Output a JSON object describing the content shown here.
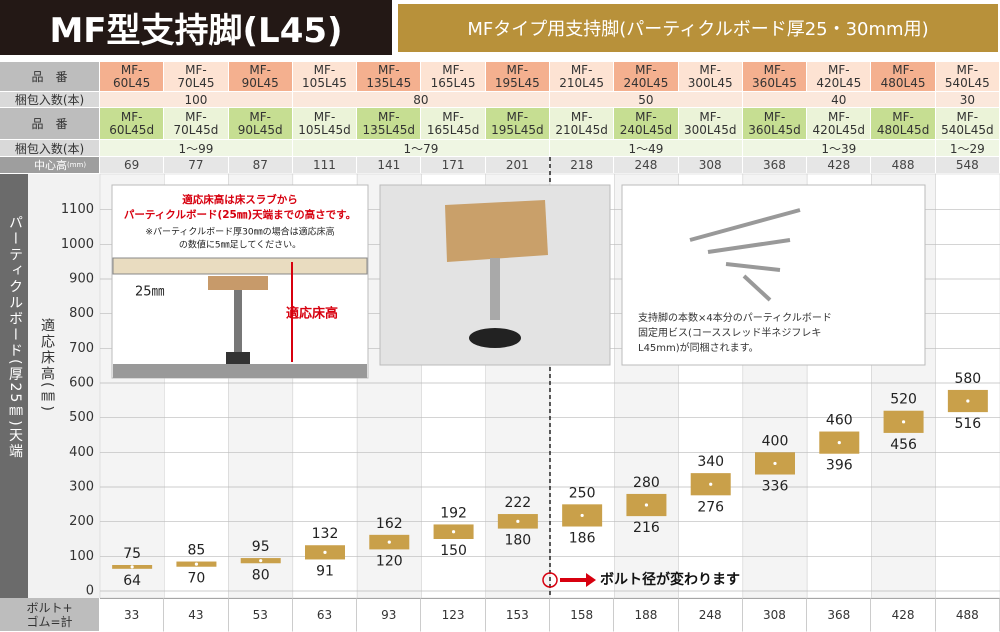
{
  "header": {
    "title": "MF型支持脚(L45)",
    "subtitle": "MFタイプ用支持脚(パーティクルボード厚25・30mm用)"
  },
  "table": {
    "row_labels": [
      "品　番",
      "梱包入数(本)",
      "品　番",
      "梱包入数(本)"
    ],
    "models": [
      "MF-60L45",
      "MF-70L45",
      "MF-90L45",
      "MF-105L45",
      "MF-135L45",
      "MF-165L45",
      "MF-195L45",
      "MF-210L45",
      "MF-240L45",
      "MF-300L45",
      "MF-360L45",
      "MF-420L45",
      "MF-480L45",
      "MF-540L45"
    ],
    "pack": [
      "100",
      "80",
      "50",
      "40",
      "30"
    ],
    "models_d": [
      "MF-60L45d",
      "MF-70L45d",
      "MF-90L45d",
      "MF-105L45d",
      "MF-135L45d",
      "MF-165L45d",
      "MF-195L45d",
      "MF-210L45d",
      "MF-240L45d",
      "MF-300L45d",
      "MF-360L45d",
      "MF-420L45d",
      "MF-480L45d",
      "MF-540L45d"
    ],
    "pack_d": [
      "1〜99",
      "1〜79",
      "1〜49",
      "1〜39",
      "1〜29"
    ],
    "center_label": "中心高",
    "center_unit": "(mm)",
    "center_heights": [
      69,
      77,
      87,
      111,
      141,
      171,
      201,
      218,
      248,
      308,
      368,
      428,
      488,
      548
    ],
    "bottom_label": [
      "ボルト+",
      "ゴム=計"
    ],
    "bottom_values": [
      33,
      43,
      53,
      63,
      93,
      123,
      153,
      158,
      188,
      248,
      308,
      368,
      428,
      488
    ]
  },
  "chart_data": {
    "type": "range",
    "side_label": "パーティクルボード(厚25㎜)天端",
    "y_label": "適応床高(㎜)",
    "categories": [
      "MF-60L45",
      "MF-70L45",
      "MF-90L45",
      "MF-105L45",
      "MF-135L45",
      "MF-165L45",
      "MF-195L45",
      "MF-210L45",
      "MF-240L45",
      "MF-300L45",
      "MF-360L45",
      "MF-420L45",
      "MF-480L45",
      "MF-540L45"
    ],
    "low": [
      64,
      70,
      80,
      91,
      120,
      150,
      180,
      186,
      216,
      276,
      336,
      396,
      456,
      516
    ],
    "high": [
      75,
      85,
      95,
      132,
      162,
      192,
      222,
      250,
      280,
      340,
      400,
      460,
      520,
      580
    ],
    "color": "#c9a04a",
    "ylim": [
      0,
      1200
    ],
    "yticks": [
      0,
      100,
      200,
      300,
      400,
      500,
      600,
      700,
      800,
      900,
      1000,
      1100
    ],
    "grid": true,
    "annotation": "ボルト径が変わります"
  },
  "insets": {
    "diagram_title": [
      "適応床高は床スラブから",
      "パーティクルボード(25㎜)天端までの高さです。"
    ],
    "diagram_note": [
      "※パーティクルボード厚30㎜の場合は適応床高",
      "の数値に5㎜足してください。"
    ],
    "diagram_thickness": "25㎜",
    "diagram_height": "適応床高",
    "screw_caption": [
      "支持脚の本数×4本分のパーティクルボード",
      "固定用ビス(コーススレッド半ネジフレキ",
      "L45mm)が同梱されます。"
    ]
  }
}
